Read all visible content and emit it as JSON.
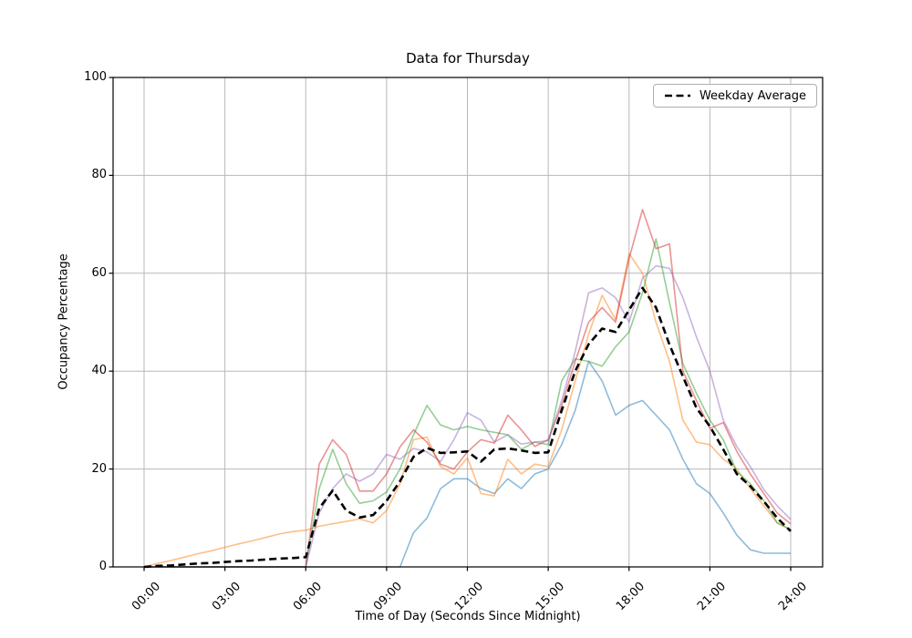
{
  "chart_data": {
    "type": "line",
    "title": "Data for Thursday",
    "xlabel": "Time of Day (Seconds Since Midnight)",
    "ylabel": "Occupancy Percentage",
    "ylim": [
      0,
      100
    ],
    "xlim_hours": [
      -1.2,
      25.2
    ],
    "grid": true,
    "grid_color": "#b8b8b8",
    "x_tick_hours": [
      0,
      3,
      6,
      9,
      12,
      15,
      18,
      21,
      24
    ],
    "x_tick_labels": [
      "00:00",
      "03:00",
      "06:00",
      "09:00",
      "12:00",
      "15:00",
      "18:00",
      "21:00",
      "24:00"
    ],
    "y_ticks": [
      0,
      20,
      40,
      60,
      80,
      100
    ],
    "sample_start_hour": 0,
    "sample_interval_hours": 0.5,
    "series": [
      {
        "name": "unlabeled-day-series-blue",
        "color": "#1f77b4",
        "opacity": 0.5,
        "line_width": 1.6,
        "dash": null,
        "values": [
          0,
          0,
          0,
          0,
          0,
          0,
          0,
          0,
          0,
          0,
          0,
          0,
          0,
          0,
          0,
          0,
          0,
          0,
          0,
          0,
          7,
          10,
          16,
          18,
          18,
          16,
          15,
          18,
          16,
          19,
          20,
          25,
          32,
          42,
          38,
          31,
          33,
          34,
          31,
          28,
          22,
          17,
          15,
          11,
          6.5,
          3.5,
          2.8,
          2.8,
          2.8
        ]
      },
      {
        "name": "unlabeled-day-series-orange",
        "color": "#ff7f0e",
        "opacity": 0.5,
        "line_width": 1.6,
        "dash": null,
        "values": [
          0,
          0.7,
          1.3,
          2,
          2.7,
          3.3,
          4,
          4.7,
          5.3,
          6,
          6.7,
          7.2,
          7.5,
          8.3,
          8.8,
          9.3,
          9.8,
          9,
          11.5,
          17,
          26,
          26.5,
          20.5,
          19,
          22.3,
          15,
          14.5,
          22,
          19,
          21,
          20.5,
          28,
          38,
          47.5,
          55.5,
          50.5,
          64,
          60,
          50,
          42,
          30,
          25.5,
          25,
          22,
          20,
          16,
          12.5,
          9,
          7.6
        ]
      },
      {
        "name": "unlabeled-day-series-green",
        "color": "#2ca02c",
        "opacity": 0.5,
        "line_width": 1.6,
        "dash": null,
        "values": [
          0,
          0,
          0,
          0,
          0,
          0,
          0,
          0,
          0,
          0,
          0,
          0,
          0,
          16,
          24,
          17,
          13,
          13.5,
          15.3,
          20,
          27,
          33,
          29,
          28,
          28.7,
          28,
          27.5,
          27,
          24,
          25.5,
          25,
          38,
          42.5,
          42,
          41,
          45,
          48,
          56,
          67,
          54,
          41.5,
          35.5,
          30,
          26,
          19.5,
          17,
          13.5,
          9,
          7.6
        ]
      },
      {
        "name": "unlabeled-day-series-red",
        "color": "#d62728",
        "opacity": 0.5,
        "line_width": 1.6,
        "dash": null,
        "values": [
          0,
          0,
          0,
          0,
          0,
          0,
          0,
          0,
          0,
          0,
          0,
          0,
          0,
          21,
          26,
          23,
          15.5,
          15.5,
          19,
          24.5,
          28,
          25.5,
          21,
          20,
          23.5,
          26,
          25.3,
          31,
          28,
          24.6,
          26,
          33,
          42,
          50,
          53,
          50,
          63,
          73,
          65,
          66,
          40,
          34,
          28.3,
          29.5,
          23.6,
          19,
          15,
          11,
          8.8
        ]
      },
      {
        "name": "unlabeled-day-series-purple",
        "color": "#9467bd",
        "opacity": 0.5,
        "line_width": 1.6,
        "dash": null,
        "values": [
          0,
          0,
          0,
          0,
          0,
          0,
          0,
          0,
          0,
          0,
          0,
          0,
          0,
          11,
          16,
          19,
          17.5,
          19,
          23,
          22,
          24.2,
          23.5,
          21.5,
          26,
          31.5,
          30,
          25.5,
          27,
          25.1,
          25.5,
          25.8,
          34,
          44,
          56,
          57,
          55,
          50,
          59,
          61.5,
          61,
          55,
          47,
          40,
          30,
          24.6,
          20.5,
          15.8,
          12.5,
          9.7
        ]
      },
      {
        "name": "weekday-average",
        "label": "Weekday Average",
        "color": "#000000",
        "opacity": 1,
        "line_width": 2.6,
        "dash": [
          8,
          4.5
        ],
        "values": [
          0,
          0.2,
          0.3,
          0.5,
          0.7,
          0.8,
          1,
          1.2,
          1.3,
          1.5,
          1.7,
          1.8,
          2,
          12,
          15.6,
          11.5,
          10.1,
          10.6,
          13.5,
          17.5,
          22.5,
          24.3,
          23.3,
          23.4,
          23.6,
          21.5,
          24,
          24.2,
          23.8,
          23.3,
          23.4,
          32,
          40,
          45.5,
          48.7,
          48,
          52.5,
          57,
          53,
          45.4,
          38.9,
          32.5,
          28.7,
          24,
          19,
          16.5,
          13.4,
          10,
          7.3
        ]
      }
    ],
    "legend": {
      "position": "upper right",
      "entries": [
        {
          "label": "Weekday Average",
          "series": "weekday-average"
        }
      ]
    }
  }
}
